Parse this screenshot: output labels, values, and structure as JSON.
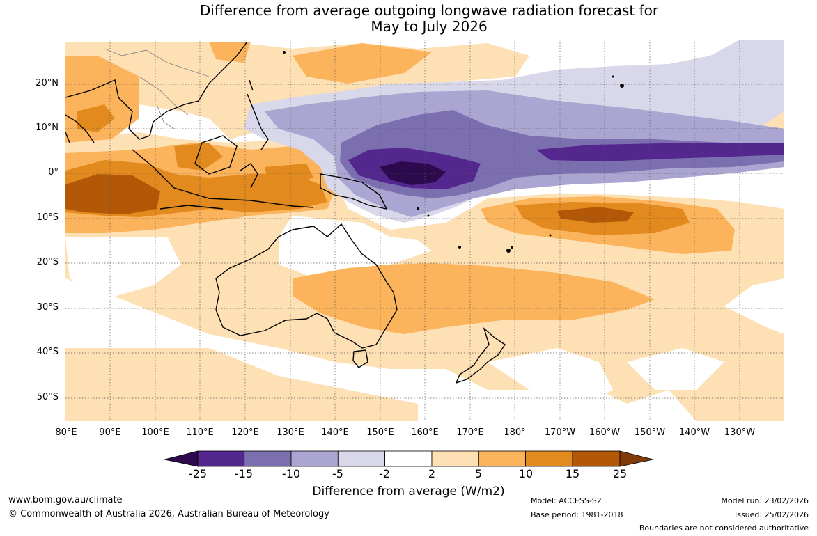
{
  "title": {
    "line1": "Difference from average outgoing longwave radiation forecast for",
    "line2": "May to July 2026"
  },
  "map": {
    "lat_labels": [
      "20°N",
      "10°N",
      "0°",
      "10°S",
      "20°S",
      "30°S",
      "40°S",
      "50°S"
    ],
    "lon_labels": [
      "80°E",
      "90°E",
      "100°E",
      "110°E",
      "120°E",
      "130°E",
      "140°E",
      "150°E",
      "160°E",
      "170°E",
      "180°",
      "170°W",
      "160°W",
      "150°W",
      "140°W",
      "130°W"
    ]
  },
  "colorbar": {
    "ticks": [
      "-25",
      "-15",
      "-10",
      "-5",
      "-2",
      "2",
      "5",
      "10",
      "15",
      "25"
    ],
    "colors": [
      "#2d0a4e",
      "#54278f",
      "#7b6fb0",
      "#aba5d2",
      "#d8d8ea",
      "#ffffff",
      "#fde0b4",
      "#fbb45c",
      "#e28a1e",
      "#b35806",
      "#7f3b08"
    ],
    "title": "Difference from average (W/m2)"
  },
  "footer": {
    "url": "www.bom.gov.au/climate",
    "copyright": "© Commonwealth of Australia 2026, Australian Bureau of Meteorology",
    "model": "Model: ACCESS-S2",
    "base_period": "Base period: 1981-2018",
    "model_run": "Model run: 23/02/2026",
    "issued": "Issued: 25/02/2026",
    "disclaimer": "Boundaries are not considered authoritative"
  }
}
